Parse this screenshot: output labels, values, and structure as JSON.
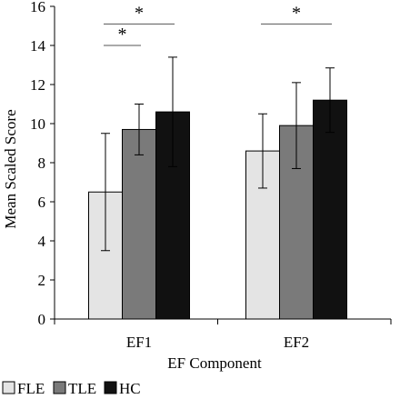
{
  "chart_data": {
    "type": "bar",
    "title": "",
    "xlabel": "EF Component",
    "ylabel": "Mean Scaled Score",
    "ylim": [
      0,
      16
    ],
    "yticks": [
      0,
      2,
      4,
      6,
      8,
      10,
      12,
      14,
      16
    ],
    "categories": [
      "EF1",
      "EF2"
    ],
    "grid": false,
    "legend_position": "bottom-left",
    "series": [
      {
        "name": "FLE",
        "color": "#e4e4e4",
        "values": [
          6.5,
          8.6
        ],
        "error": [
          3.0,
          1.9
        ]
      },
      {
        "name": "TLE",
        "color": "#7a7a7a",
        "values": [
          9.7,
          9.9
        ],
        "error": [
          1.3,
          2.2
        ]
      },
      {
        "name": "HC",
        "color": "#111111",
        "values": [
          10.6,
          11.2
        ],
        "error": [
          2.8,
          1.65
        ]
      }
    ],
    "significance": [
      {
        "category": 0,
        "from_series": 0,
        "to_series": 1,
        "y": 14.0,
        "label": "*"
      },
      {
        "category": 0,
        "from_series": 0,
        "to_series": 2,
        "y": 15.1,
        "label": "*"
      },
      {
        "category": 1,
        "from_series": 0,
        "to_series": 2,
        "y": 15.1,
        "label": "*"
      }
    ]
  }
}
